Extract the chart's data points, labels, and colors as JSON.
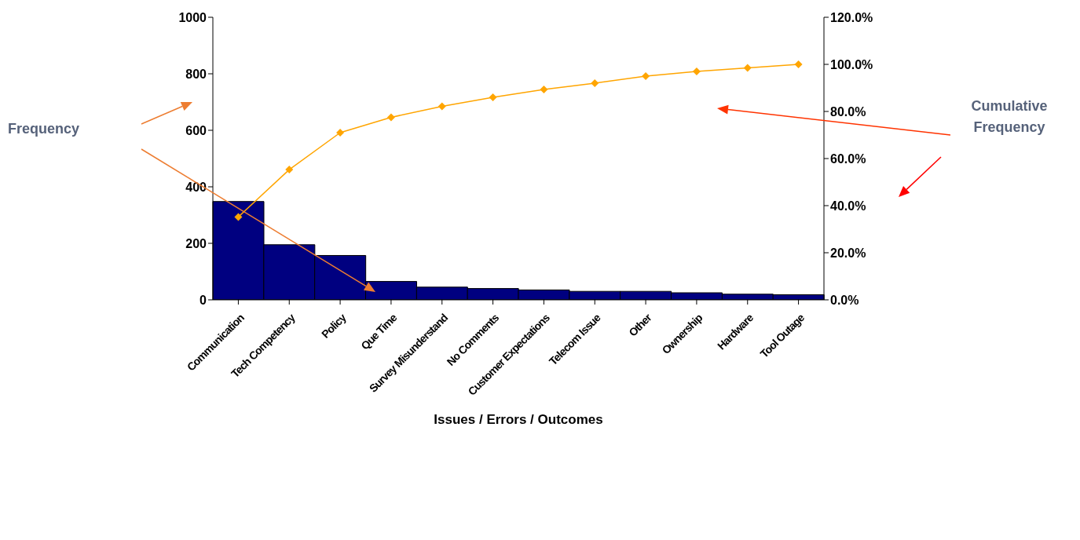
{
  "chart_data": {
    "type": "bar",
    "xlabel": "Issues / Errors / Outcomes",
    "categories": [
      "Communication",
      "Tech Competency",
      "Policy",
      "Que Time",
      "Survey Misunderstand",
      "No Comments",
      "Customer Expectations",
      "Telecom Issue",
      "Other",
      "Ownership",
      "Hardware",
      "Tool Outage"
    ],
    "series": [
      {
        "color": "#000080",
        "values": [
          348,
          195,
          157,
          65,
          45,
          40,
          35,
          30,
          30,
          25,
          20,
          18
        ]
      },
      {
        "type": "line",
        "color": "#ffa500",
        "axis": "y2",
        "marker": "diamond",
        "values": [
          35.2,
          55.3,
          71.0,
          77.5,
          82.2,
          86.0,
          89.3,
          92.0,
          95.0,
          97.0,
          98.5,
          100.0
        ]
      }
    ],
    "ylim": [
      0,
      1000
    ],
    "yticks": [
      0,
      200,
      400,
      600,
      800,
      1000
    ],
    "y2lim": [
      0,
      120
    ],
    "y2ticks": [
      {
        "value": 0,
        "label": "0.0%"
      },
      {
        "value": 20,
        "label": "20.0%"
      },
      {
        "value": 40,
        "label": "40.0%"
      },
      {
        "value": 60,
        "label": "60.0%"
      },
      {
        "value": 80,
        "label": "80.0%"
      },
      {
        "value": 100,
        "label": "100.0%"
      },
      {
        "value": 120,
        "label": "120.0%"
      }
    ],
    "grid": false,
    "legend": false,
    "annotations": [
      "Frequency",
      "Cumulative Frequency"
    ]
  }
}
